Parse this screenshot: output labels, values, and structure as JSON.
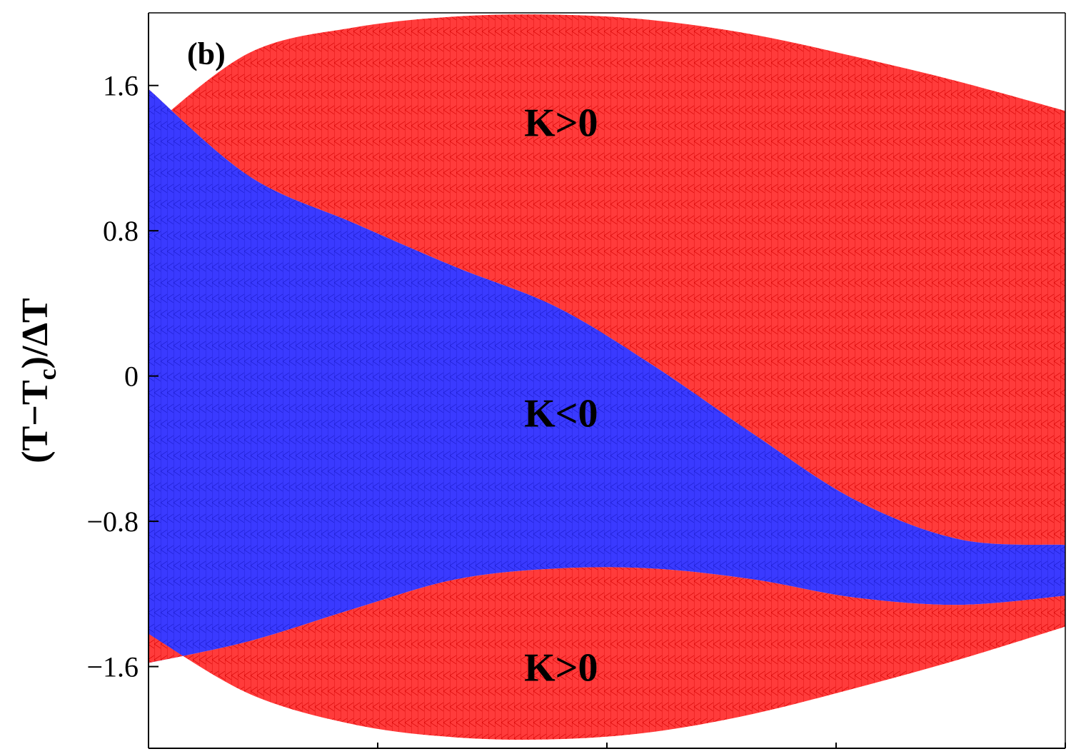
{
  "chart_data": {
    "type": "area",
    "panel_label": "(b)",
    "title": "",
    "xlabel": "",
    "ylabel": {
      "open": "(T−T",
      "sub": "c",
      "close": ")/ΔT"
    },
    "ylim": [
      -2.05,
      2.0
    ],
    "xlim": [
      -1.0,
      1.0
    ],
    "yticks": [
      1.6,
      0.8,
      0,
      -0.8,
      -1.6
    ],
    "ytick_labels": [
      "1.6",
      "0.8",
      "0",
      "−0.8",
      "−1.6"
    ],
    "xticks": [
      -0.5,
      0.0,
      0.5,
      1.0
    ],
    "grid": false,
    "colors": {
      "positive": "#ff3b3b",
      "negative": "#3a3aff",
      "mesh_positive": "#d40000",
      "mesh_negative": "#1a1acc"
    },
    "boundary": {
      "x": [
        -1.0,
        -0.78,
        -0.55,
        -0.33,
        -0.11,
        0.1,
        0.32,
        0.54,
        0.77,
        1.0
      ],
      "outer_top": [
        1.36,
        1.78,
        1.92,
        1.98,
        1.99,
        1.96,
        1.88,
        1.76,
        1.62,
        1.46
      ],
      "outer_bottom": [
        -1.42,
        -1.75,
        -1.92,
        -1.99,
        -2.0,
        -1.96,
        -1.86,
        -1.72,
        -1.56,
        -1.38
      ],
      "upper_interface": [
        1.58,
        1.1,
        0.84,
        0.6,
        0.38,
        0.06,
        -0.32,
        -0.68,
        -0.9,
        -0.93
      ],
      "lower_interface": [
        -1.58,
        -1.46,
        -1.28,
        -1.12,
        -1.06,
        -1.06,
        -1.12,
        -1.22,
        -1.26,
        -1.21
      ]
    },
    "regions": [
      {
        "name": "K>0",
        "sign": "positive",
        "x": -0.1,
        "y": 1.4
      },
      {
        "name": "K<0",
        "sign": "negative",
        "x": -0.1,
        "y": -0.2
      },
      {
        "name": "K>0",
        "sign": "positive",
        "x": -0.1,
        "y": -1.6
      }
    ]
  }
}
